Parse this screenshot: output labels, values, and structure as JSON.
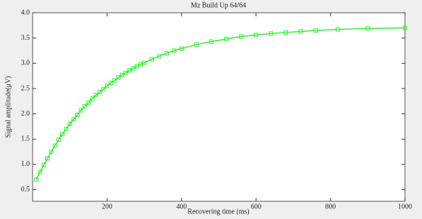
{
  "chart_data": {
    "type": "line",
    "title": "Mz Build Up 64/64",
    "x_label": "Recovering time (ms)",
    "y_label": "Signal amplitude(μV)",
    "x": [
      10,
      20,
      30,
      40,
      50,
      60,
      70,
      80,
      90,
      100,
      110,
      120,
      130,
      140,
      150,
      160,
      170,
      180,
      190,
      200,
      210,
      220,
      230,
      240,
      250,
      260,
      270,
      280,
      290,
      300,
      320,
      340,
      360,
      380,
      400,
      440,
      480,
      520,
      560,
      600,
      640,
      680,
      720,
      760,
      820,
      900,
      1000
    ],
    "series": [
      {
        "name": "Mz",
        "color": "#33ee33",
        "values": [
          0.7,
          0.85,
          0.99,
          1.12,
          1.25,
          1.37,
          1.49,
          1.6,
          1.7,
          1.8,
          1.89,
          1.98,
          2.07,
          2.15,
          2.22,
          2.3,
          2.37,
          2.43,
          2.49,
          2.55,
          2.61,
          2.66,
          2.72,
          2.77,
          2.81,
          2.86,
          2.9,
          2.94,
          2.98,
          3.01,
          3.08,
          3.14,
          3.2,
          3.25,
          3.29,
          3.37,
          3.43,
          3.48,
          3.53,
          3.56,
          3.59,
          3.61,
          3.63,
          3.65,
          3.67,
          3.69,
          3.7
        ]
      }
    ],
    "xlim": [
      0,
      1000
    ],
    "xticks": [
      200,
      400,
      600,
      800,
      1000
    ],
    "ylim": [
      0.27,
      4.0
    ],
    "yticks": [
      0.5,
      {
        "value": 1.0,
        "label": "1.0"
      },
      1.5,
      {
        "value": 2.0,
        "label": "2.0"
      },
      2.5,
      {
        "value": 3.0,
        "label": "3.0"
      },
      3.5,
      {
        "value": 4.0,
        "label": "4.0"
      }
    ]
  }
}
